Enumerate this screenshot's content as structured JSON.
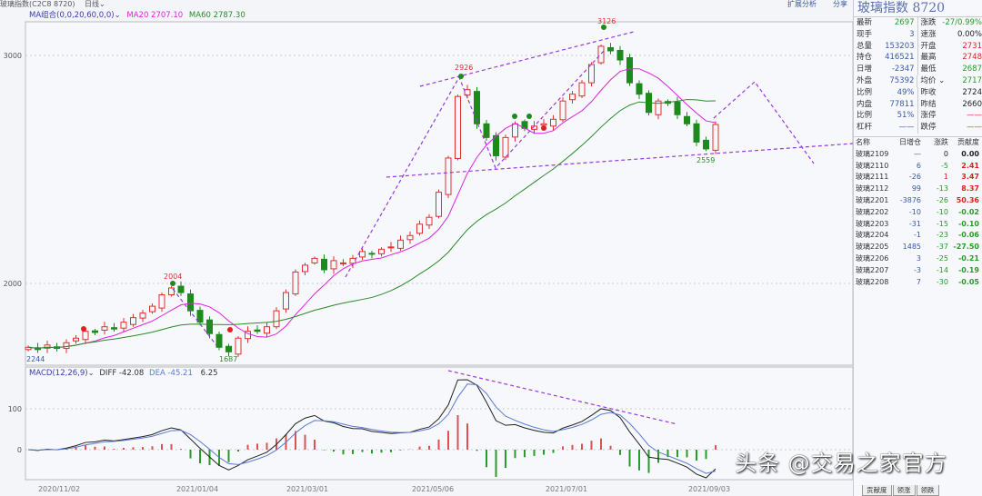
{
  "topbar": {
    "symbol": "玻璃指数(C2C8 8720)",
    "period": "日线",
    "tool1": "扩展分析",
    "tool2": "分享"
  },
  "legend": {
    "ma_group": "MA组合(0,0,20,60,0,0)",
    "ma20": "MA20 2707.10",
    "ma60": "MA60 2787.30",
    "ma20_color": "#e020e0",
    "ma60_color": "#2a8a2a"
  },
  "macd_legend": {
    "name": "MACD(12,26,9)",
    "diff": "DIFF -42.08",
    "dea": "DEA -45.21",
    "macd": "6.25"
  },
  "annotations": {
    "high1": "2926",
    "high2": "3126",
    "high0": "2004",
    "low0": "1687",
    "low2": "2559",
    "start": "2244"
  },
  "chart_data": {
    "type": "candlestick",
    "y_ticks": [
      "3000",
      "2000"
    ],
    "macd_ticks": [
      "100",
      "0"
    ],
    "x_ticks": [
      "2020/11/02",
      "2021/01/04",
      "2021/03/01",
      "2021/05/06",
      "2021/07/01",
      "2021/09/03"
    ],
    "ylim": [
      1640,
      3140
    ],
    "closes": [
      1720,
      1710,
      1730,
      1715,
      1740,
      1760,
      1790,
      1785,
      1810,
      1800,
      1830,
      1850,
      1870,
      1900,
      1950,
      1980,
      1960,
      1880,
      1830,
      1780,
      1720,
      1700,
      1760,
      1790,
      1790,
      1810,
      1880,
      1960,
      2050,
      2080,
      2110,
      2060,
      2100,
      2090,
      2110,
      2140,
      2130,
      2150,
      2160,
      2190,
      2210,
      2260,
      2290,
      2400,
      2550,
      2820,
      2850,
      2700,
      2640,
      2560,
      2640,
      2700,
      2680,
      2690,
      2700,
      2720,
      2800,
      2830,
      2880,
      2960,
      3040,
      3020,
      2980,
      2880,
      2830,
      2750,
      2800,
      2790,
      2740,
      2700,
      2620,
      2590,
      2697
    ],
    "up_color": "#e03030",
    "down_color": "#1e8a1e"
  },
  "panel": {
    "title": "玻璃指数  8720",
    "quotes": [
      {
        "l": "最新",
        "v": "2697",
        "vc": "g",
        "l2": "涨跌",
        "v2": "-27/0.99%",
        "v2c": "g"
      },
      {
        "l": "现手",
        "v": "3",
        "vc": "b",
        "l2": "速涨",
        "v2": "0.00%",
        "v2c": "k"
      },
      {
        "l": "总量",
        "v": "153203",
        "vc": "b",
        "l2": "开盘",
        "v2": "2731",
        "v2c": "r"
      },
      {
        "l": "持仓",
        "v": "416521",
        "vc": "b",
        "l2": "最高",
        "v2": "2748",
        "v2c": "r"
      },
      {
        "l": "日增",
        "v": "-2347",
        "vc": "b",
        "l2": "最低",
        "v2": "2687",
        "v2c": "g"
      },
      {
        "l": "外盘",
        "v": "75392",
        "vc": "b",
        "l2": "均价 ⌄",
        "v2": "2717",
        "v2c": "g"
      },
      {
        "l": "比例",
        "v": "49%",
        "vc": "b",
        "l2": "昨收",
        "v2": "2724",
        "v2c": "k"
      },
      {
        "l": "内盘",
        "v": "77811",
        "vc": "b",
        "l2": "昨结",
        "v2": "2660",
        "v2c": "k"
      },
      {
        "l": "比例",
        "v": "51%",
        "vc": "b",
        "l2": "涨停",
        "v2": "——",
        "v2c": "r"
      },
      {
        "l": "杠杆",
        "v": "——",
        "vc": "b",
        "l2": "跌停",
        "v2": "——",
        "v2c": "g"
      }
    ],
    "list_header": [
      "名称",
      "日增仓",
      "涨跌",
      "贡献度"
    ],
    "list": [
      {
        "n": "玻璃2109",
        "a": "—",
        "c": "0",
        "cc": "k",
        "p": "0.00",
        "pc": "k"
      },
      {
        "n": "玻璃2110",
        "a": "6",
        "c": "-5",
        "cc": "g",
        "p": "2.41",
        "pc": "r"
      },
      {
        "n": "玻璃2111",
        "a": "-26",
        "c": "1",
        "cc": "r",
        "p": "3.47",
        "pc": "r"
      },
      {
        "n": "玻璃2112",
        "a": "99",
        "c": "-13",
        "cc": "g",
        "p": "8.37",
        "pc": "r"
      },
      {
        "n": "玻璃2201",
        "a": "-3876",
        "c": "-26",
        "cc": "g",
        "p": "50.36",
        "pc": "r"
      },
      {
        "n": "玻璃2202",
        "a": "-10",
        "c": "-10",
        "cc": "g",
        "p": "-0.02",
        "pc": "g"
      },
      {
        "n": "玻璃2203",
        "a": "-31",
        "c": "-15",
        "cc": "g",
        "p": "-0.10",
        "pc": "g"
      },
      {
        "n": "玻璃2204",
        "a": "-1",
        "c": "-23",
        "cc": "g",
        "p": "-0.06",
        "pc": "g"
      },
      {
        "n": "玻璃2205",
        "a": "1485",
        "c": "-37",
        "cc": "g",
        "p": "-27.50",
        "pc": "g"
      },
      {
        "n": "玻璃2206",
        "a": "3",
        "c": "-25",
        "cc": "g",
        "p": "-0.21",
        "pc": "g"
      },
      {
        "n": "玻璃2207",
        "a": "-3",
        "c": "-14",
        "cc": "g",
        "p": "-0.19",
        "pc": "g"
      },
      {
        "n": "玻璃2208",
        "a": "7",
        "c": "-30",
        "cc": "g",
        "p": "-0.05",
        "pc": "g"
      }
    ],
    "tabs": [
      "贡献度",
      "领涨",
      "领跌"
    ]
  },
  "watermark": "头条 @交易之家官方"
}
